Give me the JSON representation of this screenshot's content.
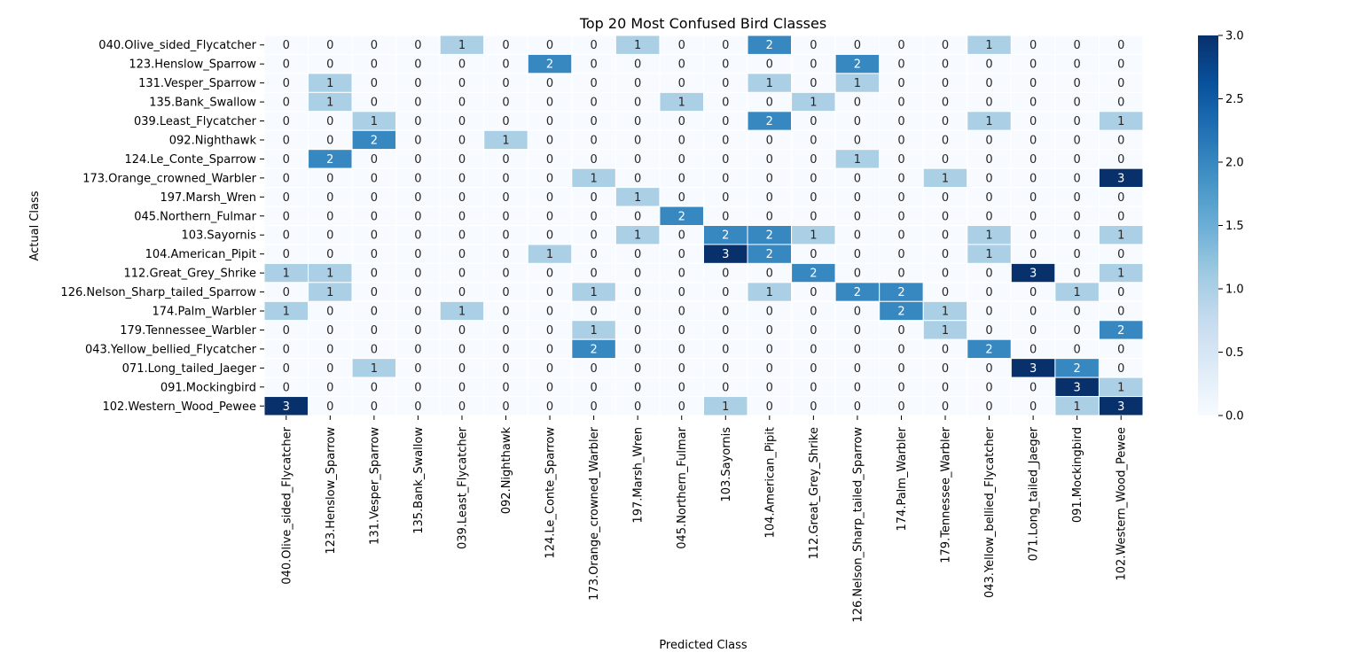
{
  "chart_data": {
    "type": "heatmap",
    "title": "Top 20 Most Confused Bird Classes",
    "xlabel": "Predicted Class",
    "ylabel": "Actual Class",
    "rows": [
      "040.Olive_sided_Flycatcher",
      "123.Henslow_Sparrow",
      "131.Vesper_Sparrow",
      "135.Bank_Swallow",
      "039.Least_Flycatcher",
      "092.Nighthawk",
      "124.Le_Conte_Sparrow",
      "173.Orange_crowned_Warbler",
      "197.Marsh_Wren",
      "045.Northern_Fulmar",
      "103.Sayornis",
      "104.American_Pipit",
      "112.Great_Grey_Shrike",
      "126.Nelson_Sharp_tailed_Sparrow",
      "174.Palm_Warbler",
      "179.Tennessee_Warbler",
      "043.Yellow_bellied_Flycatcher",
      "071.Long_tailed_Jaeger",
      "091.Mockingbird",
      "102.Western_Wood_Pewee"
    ],
    "columns": [
      "040.Olive_sided_Flycatcher",
      "123.Henslow_Sparrow",
      "131.Vesper_Sparrow",
      "135.Bank_Swallow",
      "039.Least_Flycatcher",
      "092.Nighthawk",
      "124.Le_Conte_Sparrow",
      "173.Orange_crowned_Warbler",
      "197.Marsh_Wren",
      "045.Northern_Fulmar",
      "103.Sayornis",
      "104.American_Pipit",
      "112.Great_Grey_Shrike",
      "126.Nelson_Sharp_tailed_Sparrow",
      "174.Palm_Warbler",
      "179.Tennessee_Warbler",
      "043.Yellow_bellied_Flycatcher",
      "071.Long_tailed_Jaeger",
      "091.Mockingbird",
      "102.Western_Wood_Pewee"
    ],
    "values": [
      [
        0,
        0,
        0,
        0,
        1,
        0,
        0,
        0,
        1,
        0,
        0,
        2,
        0,
        0,
        0,
        0,
        1,
        0,
        0,
        0
      ],
      [
        0,
        0,
        0,
        0,
        0,
        0,
        2,
        0,
        0,
        0,
        0,
        0,
        0,
        2,
        0,
        0,
        0,
        0,
        0,
        0
      ],
      [
        0,
        1,
        0,
        0,
        0,
        0,
        0,
        0,
        0,
        0,
        0,
        1,
        0,
        1,
        0,
        0,
        0,
        0,
        0,
        0
      ],
      [
        0,
        1,
        0,
        0,
        0,
        0,
        0,
        0,
        0,
        1,
        0,
        0,
        1,
        0,
        0,
        0,
        0,
        0,
        0,
        0
      ],
      [
        0,
        0,
        1,
        0,
        0,
        0,
        0,
        0,
        0,
        0,
        0,
        2,
        0,
        0,
        0,
        0,
        1,
        0,
        0,
        1
      ],
      [
        0,
        0,
        2,
        0,
        0,
        1,
        0,
        0,
        0,
        0,
        0,
        0,
        0,
        0,
        0,
        0,
        0,
        0,
        0,
        0
      ],
      [
        0,
        2,
        0,
        0,
        0,
        0,
        0,
        0,
        0,
        0,
        0,
        0,
        0,
        1,
        0,
        0,
        0,
        0,
        0,
        0
      ],
      [
        0,
        0,
        0,
        0,
        0,
        0,
        0,
        1,
        0,
        0,
        0,
        0,
        0,
        0,
        0,
        1,
        0,
        0,
        0,
        3
      ],
      [
        0,
        0,
        0,
        0,
        0,
        0,
        0,
        0,
        1,
        0,
        0,
        0,
        0,
        0,
        0,
        0,
        0,
        0,
        0,
        0
      ],
      [
        0,
        0,
        0,
        0,
        0,
        0,
        0,
        0,
        0,
        2,
        0,
        0,
        0,
        0,
        0,
        0,
        0,
        0,
        0,
        0
      ],
      [
        0,
        0,
        0,
        0,
        0,
        0,
        0,
        0,
        1,
        0,
        2,
        2,
        1,
        0,
        0,
        0,
        1,
        0,
        0,
        1
      ],
      [
        0,
        0,
        0,
        0,
        0,
        0,
        1,
        0,
        0,
        0,
        3,
        2,
        0,
        0,
        0,
        0,
        1,
        0,
        0,
        0
      ],
      [
        1,
        1,
        0,
        0,
        0,
        0,
        0,
        0,
        0,
        0,
        0,
        0,
        2,
        0,
        0,
        0,
        0,
        3,
        0,
        1
      ],
      [
        0,
        1,
        0,
        0,
        0,
        0,
        0,
        1,
        0,
        0,
        0,
        1,
        0,
        2,
        2,
        0,
        0,
        0,
        1,
        0
      ],
      [
        1,
        0,
        0,
        0,
        1,
        0,
        0,
        0,
        0,
        0,
        0,
        0,
        0,
        0,
        2,
        1,
        0,
        0,
        0,
        0
      ],
      [
        0,
        0,
        0,
        0,
        0,
        0,
        0,
        1,
        0,
        0,
        0,
        0,
        0,
        0,
        0,
        1,
        0,
        0,
        0,
        2
      ],
      [
        0,
        0,
        0,
        0,
        0,
        0,
        0,
        2,
        0,
        0,
        0,
        0,
        0,
        0,
        0,
        0,
        2,
        0,
        0,
        0
      ],
      [
        0,
        0,
        1,
        0,
        0,
        0,
        0,
        0,
        0,
        0,
        0,
        0,
        0,
        0,
        0,
        0,
        0,
        3,
        2,
        0
      ],
      [
        0,
        0,
        0,
        0,
        0,
        0,
        0,
        0,
        0,
        0,
        0,
        0,
        0,
        0,
        0,
        0,
        0,
        0,
        3,
        1
      ],
      [
        3,
        0,
        0,
        0,
        0,
        0,
        0,
        0,
        0,
        0,
        1,
        0,
        0,
        0,
        0,
        0,
        0,
        0,
        1,
        3
      ]
    ],
    "colormap": "Blues",
    "colorbar": {
      "min": 0.0,
      "max": 3.0,
      "ticks": [
        "0.0",
        "0.5",
        "1.0",
        "1.5",
        "2.0",
        "2.5",
        "3.0"
      ]
    },
    "colors": {
      "0": "#f7fbff",
      "1": "#a8cee4",
      "2": "#3282be",
      "3": "#08306b",
      "light_text": "#ffffff",
      "dark_text": "#262626",
      "grid": "#ffffff"
    }
  }
}
